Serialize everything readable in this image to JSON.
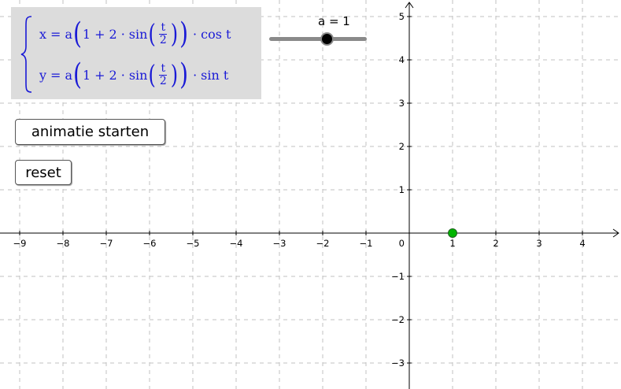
{
  "formula": {
    "x_lhs": "x",
    "y_lhs": "y",
    "equals": "=",
    "coef": "a",
    "one": "1",
    "plus": "+",
    "two": "2",
    "dot": "·",
    "sin": "sin",
    "t": "t",
    "denominator": "2",
    "x_trig": "cos t",
    "y_trig": "sin t",
    "lparen": "(",
    "rparen": ")"
  },
  "slider": {
    "label": "a = 1",
    "value": 1,
    "min": -5,
    "max": 5
  },
  "buttons": {
    "animate_label": "animatie starten",
    "reset_label": "reset"
  },
  "graph": {
    "x_ticks": [
      "−9",
      "−8",
      "−7",
      "−6",
      "−5",
      "−4",
      "−3",
      "−2",
      "−1",
      "1",
      "2",
      "3",
      "4"
    ],
    "y_ticks": [
      "5",
      "4",
      "3",
      "2",
      "1",
      "−1",
      "−2",
      "−3"
    ],
    "origin_label": "0",
    "point": {
      "x": 1,
      "y": 0,
      "color": "#00b400"
    },
    "grid": true
  }
}
